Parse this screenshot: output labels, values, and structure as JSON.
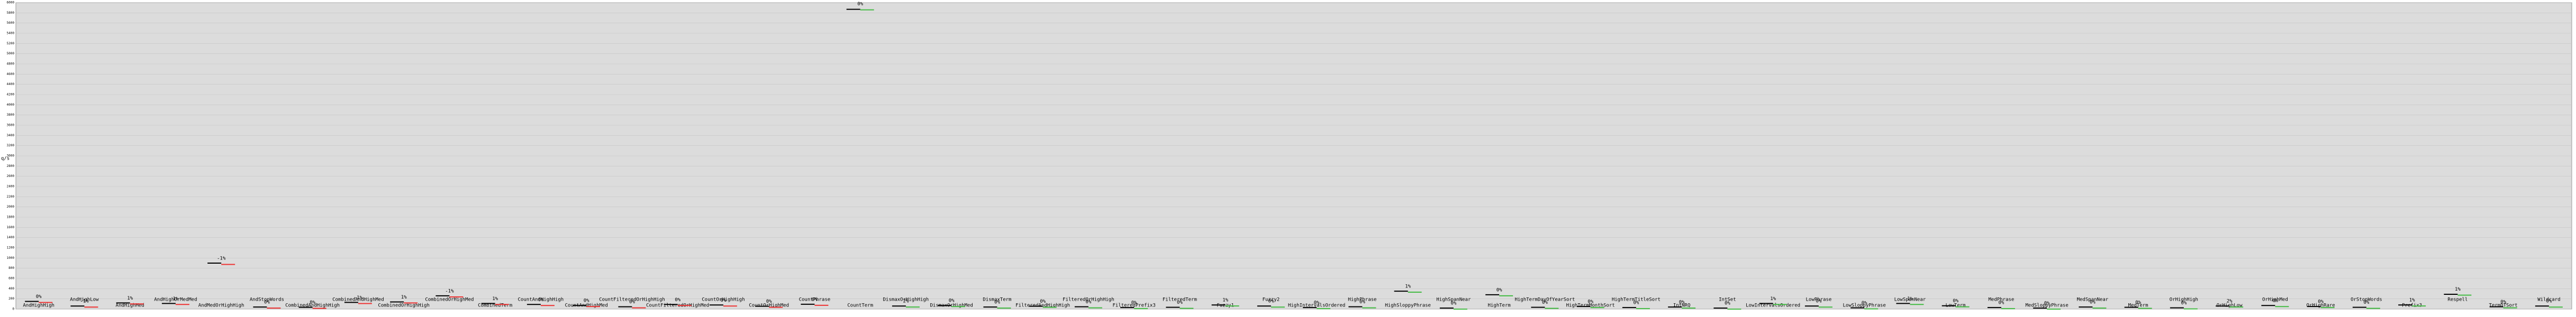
{
  "chart_data": {
    "type": "benchmark",
    "y_label": "q/s",
    "categories": [
      "AndHighHigh",
      "AndHighLow",
      "AndHighMed",
      "AndHighOrMedMed",
      "AndMedOrHighHigh",
      "AndStopWords",
      "CombinedAndHighHigh",
      "CombinedAndHighMed",
      "CombinedOrHighHigh",
      "CombinedOrHighMed",
      "CombinedTerm",
      "CountAndHighHigh",
      "CountAndHighMed",
      "CountFilteredOrHighHigh",
      "CountFilteredOrHighMed",
      "CountOrHighHigh",
      "CountOrHighMed",
      "CountPhrase",
      "CountTerm",
      "DismaxOrHighHigh",
      "DismaxOrHighMed",
      "DismaxTerm",
      "FilteredAndHighHigh",
      "FilteredOrHighHigh",
      "FilteredPrefix3",
      "FilteredTerm",
      "Fuzzy1",
      "Fuzzy2",
      "HighIntervalsOrdered",
      "HighPhrase",
      "HighSloppyPhrase",
      "HighSpanNear",
      "HighTerm",
      "HighTermDayOfYearSort",
      "HighTermMonthSort",
      "HighTermTitleSort",
      "IntNRQ",
      "IntSet",
      "LowIntervalsOrdered",
      "LowPhrase",
      "LowSloppyPhrase",
      "LowSpanNear",
      "LowTerm",
      "MedPhrase",
      "MedSloppyPhrase",
      "MedSpanNear",
      "MedTerm",
      "OrHighHigh",
      "OrHighLow",
      "OrHighMed",
      "OrHighRare",
      "OrStopWords",
      "Prefix3",
      "Respell",
      "TermDTSort",
      "Wildcard"
    ],
    "series": [
      {
        "color": "#000000",
        "values": [
          150,
          60,
          120,
          110,
          900,
          40,
          35,
          130,
          140,
          260,
          110,
          90,
          70,
          45,
          90,
          80,
          55,
          95,
          5870,
          60,
          70,
          40,
          55,
          45,
          30,
          35,
          80,
          60,
          30,
          45,
          350,
          20,
          280,
          35,
          50,
          30,
          40,
          20,
          110,
          60,
          25,
          110,
          65,
          30,
          20,
          40,
          35,
          25,
          60,
          70,
          50,
          35,
          80,
          290,
          45,
          60
        ]
      },
      {
        "colors": [
          "#e33",
          "#e33",
          "#e33",
          "#e33",
          "#e33",
          "#e33",
          "#e33",
          "#e33",
          "#e33",
          "#e33",
          "#e33",
          "#e33",
          "#e33",
          "#e33",
          "#e33",
          "#e33",
          "#e33",
          "#e33",
          "#4b4",
          "#4b4",
          "#4b4",
          "#4b4",
          "#4b4",
          "#4b4",
          "#4b4",
          "#4b4",
          "#4b4",
          "#4b4",
          "#4b4",
          "#4b4",
          "#4b4",
          "#4b4",
          "#4b4",
          "#4b4",
          "#4b4",
          "#4b4",
          "#4b4",
          "#4b4",
          "#4b4",
          "#4b4",
          "#4b4",
          "#4b4",
          "#4b4",
          "#4b4",
          "#4b4",
          "#4b4",
          "#4b4",
          "#4b4",
          "#4b4",
          "#4b4",
          "#4b4",
          "#4b4",
          "#4b4",
          "#4b4",
          "#4b4",
          "#4b4"
        ],
        "values": [
          150,
          59,
          121,
          111,
          895,
          40,
          35,
          129,
          141,
          258,
          111,
          90,
          70,
          45,
          90,
          80,
          55,
          95,
          5880,
          61,
          70,
          40,
          55,
          45,
          30,
          35,
          81,
          60,
          30,
          45,
          352,
          20,
          281,
          35,
          50,
          30,
          40,
          20,
          111,
          60,
          25,
          111,
          65,
          30,
          20,
          40,
          35,
          25,
          61,
          70,
          50,
          35,
          81,
          293,
          45,
          60
        ]
      }
    ],
    "changes": [
      "0%",
      "-1%",
      "1%",
      "1%",
      "-1%",
      "0%",
      "0%",
      "-1%",
      "1%",
      "-1%",
      "1%",
      "0%",
      "0%",
      "0%",
      "0%",
      "0%",
      "0%",
      "0%",
      "0%",
      "2%",
      "0%",
      "0%",
      "0%",
      "0%",
      "0%",
      "0%",
      "1%",
      "0%",
      "0%",
      "0%",
      "1%",
      "0%",
      "0%",
      "0%",
      "0%",
      "0%",
      "0%",
      "0%",
      "1%",
      "0%",
      "0%",
      "1%",
      "0%",
      "0%",
      "0%",
      "0%",
      "0%",
      "0%",
      "2%",
      "0%",
      "0%",
      "0%",
      "1%",
      "1%",
      "0%",
      "0%"
    ],
    "ylim": [
      0,
      6000
    ],
    "yticks": [
      0,
      200,
      400,
      600,
      800,
      1000,
      1200,
      1400,
      1600,
      1800,
      2000,
      2200,
      2400,
      2600,
      2800,
      3000,
      3200,
      3400,
      3600,
      3800,
      4000,
      4200,
      4400,
      4600,
      4800,
      5000,
      5200,
      5400,
      5600,
      5800,
      6000
    ],
    "grid": true
  }
}
